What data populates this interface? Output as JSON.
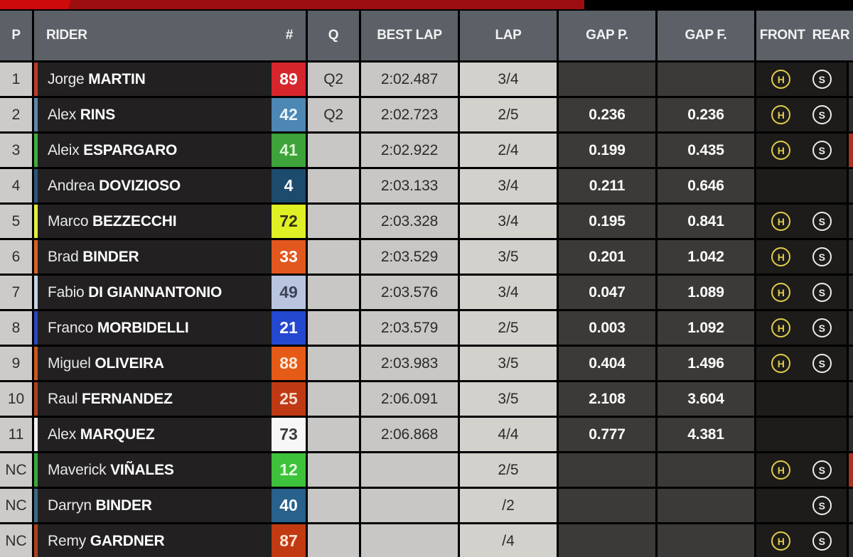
{
  "header": {
    "pos": "P",
    "rider": "RIDER",
    "number": "#",
    "q": "Q",
    "best_lap": "BEST LAP",
    "lap": "LAP",
    "gap_p": "GAP P.",
    "gap_f": "GAP F.",
    "front": "FRONT",
    "rear": "REAR"
  },
  "colors": {
    "accent_bright_red": "#ce0a0b",
    "accent_dark_red": "#9d0e10",
    "tire_hard": "#e3cd49",
    "tire_soft": "#ececec",
    "edge_marker_red": "#a83226"
  },
  "rows": [
    {
      "pos": "1",
      "first": "Jorge",
      "last": "MARTIN",
      "num": "89",
      "num_bg": "#d6262b",
      "num_fg": "#ffffff",
      "stripe": "#c0392b",
      "q": "Q2",
      "best_lap": "2:02.487",
      "lap": "3/4",
      "gap_p": "",
      "gap_f": "",
      "front": "H",
      "rear": "S",
      "edge_marker": false
    },
    {
      "pos": "2",
      "first": "Alex",
      "last": "RINS",
      "num": "42",
      "num_bg": "#4d87b3",
      "num_fg": "#e9f5fd",
      "stripe": "#5c88aa",
      "q": "Q2",
      "best_lap": "2:02.723",
      "lap": "2/5",
      "gap_p": "0.236",
      "gap_f": "0.236",
      "front": "H",
      "rear": "S",
      "edge_marker": false
    },
    {
      "pos": "3",
      "first": "Aleix",
      "last": "ESPARGARO",
      "num": "41",
      "num_bg": "#3da33a",
      "num_fg": "#d9f6d1",
      "stripe": "#3fae3c",
      "q": "",
      "best_lap": "2:02.922",
      "lap": "2/4",
      "gap_p": "0.199",
      "gap_f": "0.435",
      "front": "H",
      "rear": "S",
      "edge_marker": true
    },
    {
      "pos": "4",
      "first": "Andrea",
      "last": "DOVIZIOSO",
      "num": "4",
      "num_bg": "#1d4b6e",
      "num_fg": "#ffffff",
      "stripe": "#2a567c",
      "q": "",
      "best_lap": "2:03.133",
      "lap": "3/4",
      "gap_p": "0.211",
      "gap_f": "0.646",
      "front": null,
      "rear": null,
      "edge_marker": false
    },
    {
      "pos": "5",
      "first": "Marco",
      "last": "BEZZECCHI",
      "num": "72",
      "num_bg": "#dff025",
      "num_fg": "#32321a",
      "stripe": "#e5ee3d",
      "q": "",
      "best_lap": "2:03.328",
      "lap": "3/4",
      "gap_p": "0.195",
      "gap_f": "0.841",
      "front": "H",
      "rear": "S",
      "edge_marker": false
    },
    {
      "pos": "6",
      "first": "Brad",
      "last": "BINDER",
      "num": "33",
      "num_bg": "#e2571e",
      "num_fg": "#ffffff",
      "stripe": "#d6602b",
      "q": "",
      "best_lap": "2:03.529",
      "lap": "3/5",
      "gap_p": "0.201",
      "gap_f": "1.042",
      "front": "H",
      "rear": "S",
      "edge_marker": false
    },
    {
      "pos": "7",
      "first": "Fabio",
      "last": "DI GIANNANTONIO",
      "num": "49",
      "num_bg": "#b9c5de",
      "num_fg": "#3b4458",
      "stripe": "#c3d2e4",
      "q": "",
      "best_lap": "2:03.576",
      "lap": "3/4",
      "gap_p": "0.047",
      "gap_f": "1.089",
      "front": "H",
      "rear": "S",
      "edge_marker": false
    },
    {
      "pos": "8",
      "first": "Franco",
      "last": "MORBIDELLI",
      "num": "21",
      "num_bg": "#2448d0",
      "num_fg": "#ffffff",
      "stripe": "#2a48c2",
      "q": "",
      "best_lap": "2:03.579",
      "lap": "2/5",
      "gap_p": "0.003",
      "gap_f": "1.092",
      "front": "H",
      "rear": "S",
      "edge_marker": false
    },
    {
      "pos": "9",
      "first": "Miguel",
      "last": "OLIVEIRA",
      "num": "88",
      "num_bg": "#e55a17",
      "num_fg": "#ffe9d8",
      "stripe": "#ca581f",
      "q": "",
      "best_lap": "2:03.983",
      "lap": "3/5",
      "gap_p": "0.404",
      "gap_f": "1.496",
      "front": "H",
      "rear": "S",
      "edge_marker": false
    },
    {
      "pos": "10",
      "first": "Raul",
      "last": "FERNANDEZ",
      "num": "25",
      "num_bg": "#bf3a14",
      "num_fg": "#f6ded1",
      "stripe": "#b04020",
      "q": "",
      "best_lap": "2:06.091",
      "lap": "3/5",
      "gap_p": "2.108",
      "gap_f": "3.604",
      "front": null,
      "rear": null,
      "edge_marker": false
    },
    {
      "pos": "11",
      "first": "Alex",
      "last": "MARQUEZ",
      "num": "73",
      "num_bg": "#f7f7f7",
      "num_fg": "#3a3a3a",
      "stripe": "#f0f0f0",
      "q": "",
      "best_lap": "2:06.868",
      "lap": "4/4",
      "gap_p": "0.777",
      "gap_f": "4.381",
      "front": null,
      "rear": null,
      "edge_marker": false
    },
    {
      "pos": "NC",
      "first": "Maverick",
      "last": "VIÑALES",
      "num": "12",
      "num_bg": "#3ec23c",
      "num_fg": "#e3fcde",
      "stripe": "#3aaa38",
      "q": "",
      "best_lap": "",
      "lap": "2/5",
      "gap_p": "",
      "gap_f": "",
      "front": "H",
      "rear": "S",
      "edge_marker": true
    },
    {
      "pos": "NC",
      "first": "Darryn",
      "last": "BINDER",
      "num": "40",
      "num_bg": "#27618c",
      "num_fg": "#ffffff",
      "stripe": "#3a6a84",
      "q": "",
      "best_lap": "",
      "lap": "/2",
      "gap_p": "",
      "gap_f": "",
      "front": null,
      "rear": "S",
      "edge_marker": false
    },
    {
      "pos": "NC",
      "first": "Remy",
      "last": "GARDNER",
      "num": "87",
      "num_bg": "#c23a12",
      "num_fg": "#ffe4d4",
      "stripe": "#b04020",
      "q": "",
      "best_lap": "",
      "lap": "/4",
      "gap_p": "",
      "gap_f": "",
      "front": "H",
      "rear": "S",
      "edge_marker": false
    }
  ]
}
